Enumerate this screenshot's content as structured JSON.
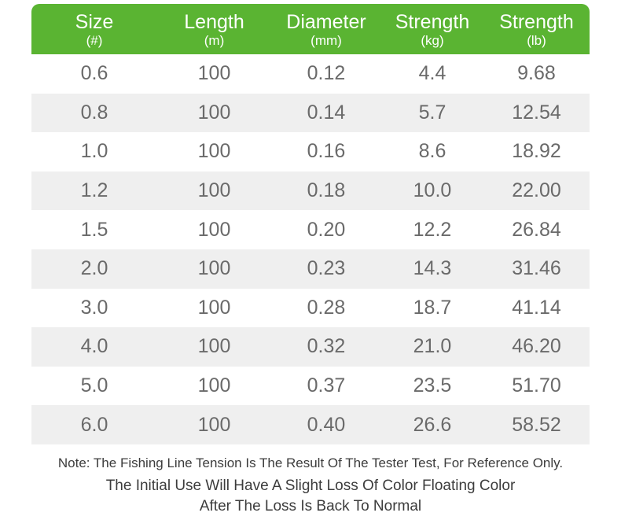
{
  "colors": {
    "page_bg": "#ffffff",
    "header_bg": "#5ab432",
    "header_text": "#ffffff",
    "row_alt_bg": "#efefef",
    "row_text": "#6a6a6a",
    "note_text": "#3c3c3c"
  },
  "chart_data": {
    "type": "table",
    "columns": [
      {
        "label": "Size",
        "unit": "(#)"
      },
      {
        "label": "Length",
        "unit": "(m)"
      },
      {
        "label": "Diameter",
        "unit": "(mm)"
      },
      {
        "label": "Strength",
        "unit": "(kg)"
      },
      {
        "label": "Strength",
        "unit": "(lb)"
      }
    ],
    "rows": [
      [
        "0.6",
        "100",
        "0.12",
        "4.4",
        "9.68"
      ],
      [
        "0.8",
        "100",
        "0.14",
        "5.7",
        "12.54"
      ],
      [
        "1.0",
        "100",
        "0.16",
        "8.6",
        "18.92"
      ],
      [
        "1.2",
        "100",
        "0.18",
        "10.0",
        "22.00"
      ],
      [
        "1.5",
        "100",
        "0.20",
        "12.2",
        "26.84"
      ],
      [
        "2.0",
        "100",
        "0.23",
        "14.3",
        "31.46"
      ],
      [
        "3.0",
        "100",
        "0.28",
        "18.7",
        "41.14"
      ],
      [
        "4.0",
        "100",
        "0.32",
        "21.0",
        "46.20"
      ],
      [
        "5.0",
        "100",
        "0.37",
        "23.5",
        "51.70"
      ],
      [
        "6.0",
        "100",
        "0.40",
        "26.6",
        "58.52"
      ]
    ],
    "layout": {
      "zebra_striping": true,
      "header_position": "top"
    }
  },
  "notes": [
    "Note: The Fishing Line Tension Is The Result Of The Tester Test, For Reference Only.",
    "The Initial Use Will Have A Slight Loss Of Color Floating Color",
    "After The Loss Is Back To Normal"
  ]
}
